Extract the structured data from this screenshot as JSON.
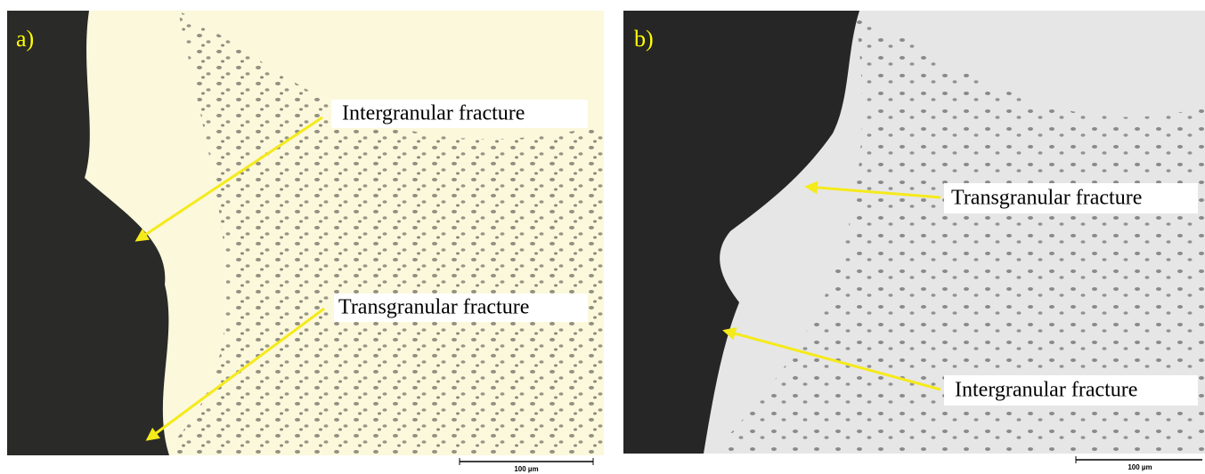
{
  "panels": [
    {
      "label": "a)",
      "annotations": [
        {
          "text": "Intergranular fracture"
        },
        {
          "text": "Transgranular fracture"
        }
      ],
      "scale_bar": "100 µm"
    },
    {
      "label": "b)",
      "annotations": [
        {
          "text": "Transgranular fracture"
        },
        {
          "text": "Intergranular fracture"
        }
      ],
      "scale_bar": "100 µm"
    }
  ]
}
